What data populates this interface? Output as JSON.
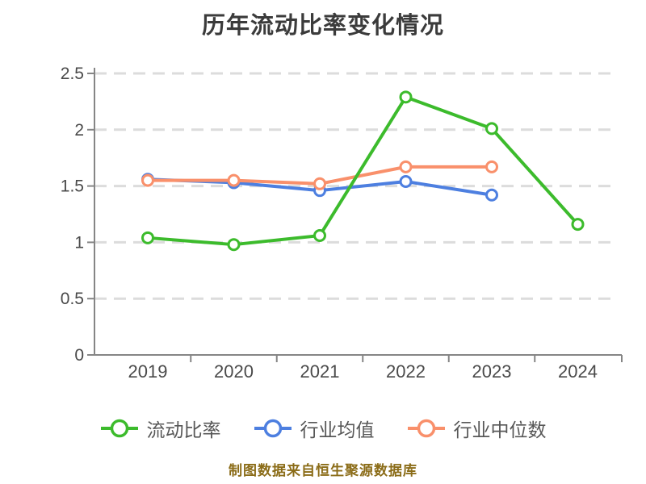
{
  "title": "历年流动比率变化情况",
  "footer": "制图数据来自恒生聚源数据库",
  "colors": {
    "grid": "#dcdcdc",
    "axis": "#858585",
    "tick_text": "#4a4a4a",
    "title_text": "#3b3b3b",
    "footer_text": "#8b6c18",
    "current_ratio": "#3cbb2c",
    "industry_avg": "#4d7fe0",
    "industry_median": "#f9906b"
  },
  "chart_data": {
    "type": "line",
    "title": "历年流动比率变化情况",
    "categories": [
      "2019",
      "2020",
      "2021",
      "2022",
      "2023",
      "2024"
    ],
    "series": [
      {
        "name": "流动比率",
        "color": "#3cbb2c",
        "values": [
          1.04,
          0.98,
          1.06,
          2.29,
          2.01,
          1.16
        ]
      },
      {
        "name": "行业均值",
        "color": "#4d7fe0",
        "values": [
          1.56,
          1.53,
          1.46,
          1.54,
          1.42,
          null
        ]
      },
      {
        "name": "行业中位数",
        "color": "#f9906b",
        "values": [
          1.55,
          1.55,
          1.52,
          1.67,
          1.67,
          null
        ]
      }
    ],
    "xlabel": "",
    "ylabel": "",
    "ylim": [
      0,
      2.5
    ],
    "yticks": [
      0,
      0.5,
      1,
      1.5,
      2,
      2.5
    ],
    "grid": true,
    "grid_style": "dashed",
    "legend_position": "bottom",
    "marker": "circle-white-fill"
  }
}
